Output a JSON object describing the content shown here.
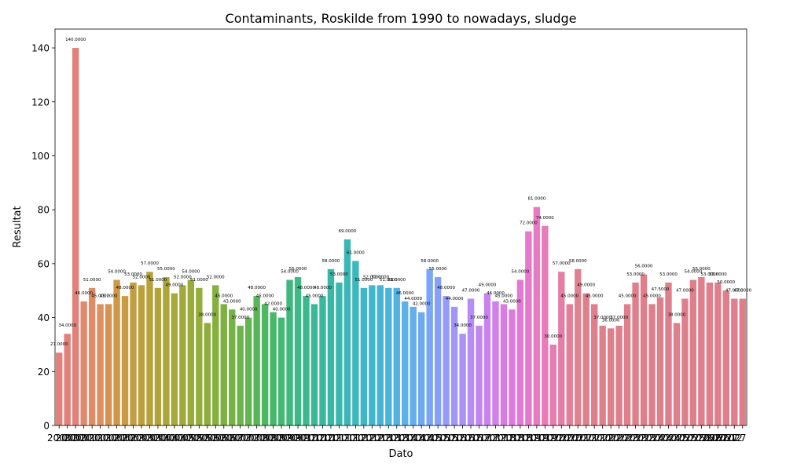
{
  "chart_data": {
    "type": "bar",
    "title": "Contaminants, Roskilde from 1990 to nowadays, sludge",
    "xlabel": "Dato",
    "ylabel": "Resultat",
    "ylim": [
      0,
      147
    ],
    "yticks": [
      0,
      20,
      40,
      60,
      80,
      100,
      120,
      140
    ],
    "grid": false,
    "legend": "none",
    "values": [
      27,
      34,
      140,
      46,
      51,
      45,
      45,
      54,
      48,
      53,
      52,
      57,
      51,
      55,
      49,
      52,
      54,
      51,
      38,
      52,
      45,
      43,
      37,
      40,
      48,
      45,
      42,
      40,
      54,
      55,
      48,
      45,
      48,
      58,
      53,
      69,
      61,
      51,
      52,
      52,
      51,
      51,
      46,
      44,
      42,
      58,
      55,
      48,
      44,
      34,
      47,
      37,
      49,
      46,
      45,
      43,
      54,
      72,
      81,
      74,
      30,
      57,
      45,
      58,
      49,
      45,
      37,
      36,
      37,
      45,
      53,
      56,
      45,
      47.5,
      53,
      38,
      47,
      54,
      55,
      53,
      53,
      50,
      47,
      47
    ],
    "category_labels": [
      "2000",
      "2000",
      "2000",
      "2001",
      "2001",
      "2001",
      "2002",
      "2002",
      "2002",
      "2003",
      "2003",
      "2003",
      "2004",
      "2004",
      "2004",
      "2005",
      "2005",
      "2005",
      "2006",
      "2006",
      "2006",
      "2007",
      "2007",
      "2007",
      "2008",
      "2008",
      "2008",
      "2009",
      "2009",
      "2009",
      "2010",
      "2010",
      "2010",
      "2011",
      "2011",
      "2011",
      "2012",
      "2012",
      "2012",
      "2013",
      "2013",
      "2013",
      "2014",
      "2014",
      "2014",
      "2015",
      "2015",
      "2015",
      "2016",
      "2016",
      "2016",
      "2017",
      "2017",
      "2017",
      "2018",
      "2018",
      "2018",
      "2019",
      "2019",
      "2019",
      "2020",
      "2020",
      "2020",
      "2021",
      "2021",
      "2021",
      "2022",
      "2022",
      "2022",
      "2023",
      "2023",
      "2023",
      "2024",
      "2024",
      "2024",
      "2025",
      "2025",
      "2025",
      "2026",
      "2026",
      "2026",
      "2027",
      "2027",
      "2027-12"
    ],
    "colors": [
      "#e1817a",
      "#e1817a",
      "#e1817a",
      "#df8a6e",
      "#de8c67",
      "#dc8f61",
      "#d8924f",
      "#cf9846",
      "#c99a41",
      "#c39d3f",
      "#bda03c",
      "#b6a23b",
      "#b1a43a",
      "#aca63a",
      "#a6a839",
      "#a0a939",
      "#9aab39",
      "#94ad3b",
      "#8dae3c",
      "#86b03e",
      "#7eb141",
      "#76b245",
      "#6db44a",
      "#63b550",
      "#58b658",
      "#4eb761",
      "#47b76b",
      "#43b874",
      "#40b87c",
      "#3eb885",
      "#3cb88e",
      "#3bb896",
      "#3ab89e",
      "#3ab8a6",
      "#3ab8ae",
      "#3bb8b6",
      "#3db7be",
      "#3fb7c6",
      "#42b6cd",
      "#46b5d4",
      "#4bb4dc",
      "#52b2e2",
      "#5ab0e8",
      "#64adee",
      "#6fa9f2",
      "#7ba5f5",
      "#87a0f7",
      "#949bf8",
      "#a096f8",
      "#ab91f7",
      "#b68cf5",
      "#c087f2",
      "#c983ee",
      "#d17fe9",
      "#d87ce3",
      "#de7adc",
      "#e379d4",
      "#e679cb",
      "#e87ac2",
      "#e87bb8",
      "#e77cae",
      "#e57ea4",
      "#e2809a",
      "#df8290",
      "#e07f8c",
      "#e07f8c",
      "#e07f8c",
      "#e07f8c",
      "#e07f8c",
      "#e07f8c",
      "#e07f8c",
      "#e07f8c",
      "#e07f8c",
      "#e07f8c",
      "#e07f8c",
      "#e07f8c",
      "#e07f8c",
      "#e07f8c",
      "#e07f8c",
      "#e07f8c",
      "#e07f8c",
      "#e07f8c",
      "#e07f8c",
      "#e07f8c"
    ]
  }
}
